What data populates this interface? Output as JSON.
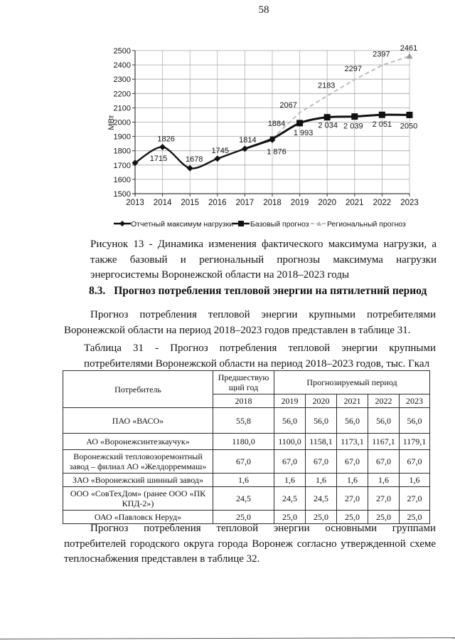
{
  "page": {
    "number": "58"
  },
  "figure": {
    "caption": "Рисунок 13 - Динамика изменения фактического максимума нагрузки, а также базовый и региональный прогнозы максимума нагрузки энергосистемы Воронежской области на 2018–2023 годы"
  },
  "chart_data": {
    "type": "line",
    "ylabel": "МВт",
    "ylim": [
      1500,
      2500
    ],
    "ytick_step": 100,
    "x": [
      2013,
      2014,
      2015,
      2016,
      2017,
      2018,
      2019,
      2020,
      2021,
      2022,
      2023
    ],
    "grid": true,
    "legend_position": "bottom",
    "series": [
      {
        "name": "Отчетный максимум нагрузки",
        "marker": "diamond",
        "style": "solid",
        "color": "#111111",
        "years": [
          2013,
          2014,
          2015,
          2016,
          2017,
          2018
        ],
        "values": [
          1715,
          1826,
          1678,
          1745,
          1814,
          1876
        ],
        "labels": [
          "1715",
          "1826",
          "1678",
          "1745",
          "1814",
          "1 876"
        ]
      },
      {
        "name": "Базовый прогноз",
        "marker": "square",
        "style": "solid",
        "color": "#111111",
        "years": [
          2017,
          2018,
          2019,
          2020,
          2021,
          2022,
          2023
        ],
        "values": [
          1814,
          1884,
          1993,
          2034,
          2039,
          2051,
          2050
        ],
        "labels": [
          "",
          "1884",
          "1 993",
          "2 034",
          "2 039",
          "2 051",
          "2050"
        ]
      },
      {
        "name": "Региональный прогноз",
        "marker": "triangle",
        "style": "dashed",
        "color": "#bdbdbd",
        "years": [
          2018,
          2019,
          2020,
          2021,
          2022,
          2023
        ],
        "values": [
          1884,
          2067,
          2183,
          2297,
          2397,
          2461
        ],
        "labels": [
          "",
          "2067",
          "2183",
          "2297",
          "2397",
          "2461"
        ]
      }
    ]
  },
  "section": {
    "number": "8.3.",
    "title": "Прогноз потребления тепловой энергии на пятилетний период"
  },
  "paragraphs": {
    "p1": "Прогноз потребления тепловой энергии крупными потребителями Воронежской области на период 2018–2023 годов представлен в таблице 31.",
    "p2": "Прогноз потребления тепловой энергии основными группами потребителей городского округа города Воронеж согласно утвержденной схеме теплоснабжения представлен в таблице 32."
  },
  "table": {
    "caption": "Таблица 31 - Прогноз потребления тепловой энергии крупными потребителями Воронежской области на период 2018–2023 годов, тыс. Гкал",
    "header": {
      "consumer": "Потребитель",
      "prev_year": "Предшествующий год",
      "prev_year_value": "2018",
      "forecast_period": "Прогнозируемый период",
      "forecast_years": [
        "2019",
        "2020",
        "2021",
        "2022",
        "2023"
      ]
    },
    "rows": [
      {
        "consumer": "ПАО «ВАСО»",
        "values": [
          "55,8",
          "56,0",
          "56,0",
          "56,0",
          "56,0",
          "56,0"
        ]
      },
      {
        "consumer": "АО «Воронежсинтезкаучук»",
        "values": [
          "1180,0",
          "1100,0",
          "1158,1",
          "1173,1",
          "1167,1",
          "1179,1"
        ]
      },
      {
        "consumer": "Воронежский тепловозоремонтный завод – филиал АО «Желдорреммаш»",
        "values": [
          "67,0",
          "67,0",
          "67,0",
          "67,0",
          "67,0",
          "67,0"
        ]
      },
      {
        "consumer": "ЗАО «Воронежский шинный завод»",
        "values": [
          "1,6",
          "1,6",
          "1,6",
          "1,6",
          "1,6",
          "1,6"
        ]
      },
      {
        "consumer": "ООО «СовТехДом» (ранее ООО «ПК КПД-2»)",
        "values": [
          "24,5",
          "24,5",
          "24,5",
          "27,0",
          "27,0",
          "27,0"
        ]
      },
      {
        "consumer": "ОАО «Павловск Неруд»",
        "values": [
          "25,0",
          "25,0",
          "25,0",
          "25,0",
          "25,0",
          "25,0"
        ]
      }
    ]
  }
}
